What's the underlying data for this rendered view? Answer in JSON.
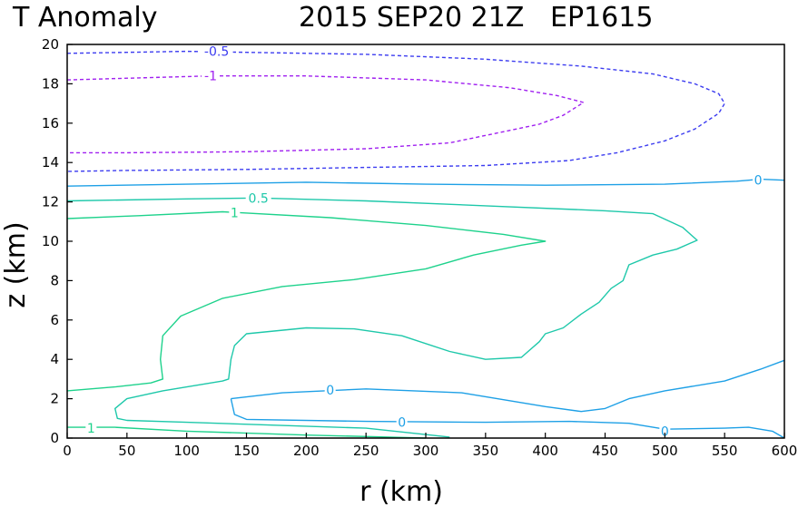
{
  "chart_data": {
    "type": "contour",
    "title_left": "T Anomaly",
    "title_right": "2015 SEP20 21Z   EP1615",
    "xlabel": "r (km)",
    "ylabel": "z (km)",
    "xlim": [
      0,
      600
    ],
    "ylim": [
      0,
      20
    ],
    "xticks": [
      "0",
      "50",
      "100",
      "150",
      "200",
      "250",
      "300",
      "350",
      "400",
      "450",
      "500",
      "550",
      "600"
    ],
    "yticks": [
      "0",
      "2",
      "4",
      "6",
      "8",
      "10",
      "12",
      "14",
      "16",
      "18",
      "20"
    ],
    "grid": false,
    "colors": {
      "neg_1": "#a020f0",
      "neg_0_5": "#3c3cf0",
      "zero": "#1ea0e6",
      "pos_0_5": "#1ec8aa",
      "pos_1": "#1ed28c"
    },
    "contours": [
      {
        "level": "-0.5",
        "style": "dashed",
        "color": "neg_0_5",
        "points": [
          [
            0,
            19.55
          ],
          [
            50,
            19.6
          ],
          [
            100,
            19.65
          ],
          [
            150,
            19.6
          ],
          [
            250,
            19.5
          ],
          [
            350,
            19.25
          ],
          [
            430,
            18.9
          ],
          [
            490,
            18.5
          ],
          [
            525,
            18.0
          ],
          [
            545,
            17.5
          ],
          [
            550,
            17.0
          ],
          [
            545,
            16.5
          ],
          [
            525,
            15.7
          ],
          [
            500,
            15.1
          ],
          [
            460,
            14.5
          ],
          [
            420,
            14.1
          ],
          [
            350,
            13.85
          ],
          [
            250,
            13.75
          ],
          [
            150,
            13.65
          ],
          [
            50,
            13.6
          ],
          [
            0,
            13.55
          ]
        ]
      },
      {
        "level": "-1",
        "style": "dashed",
        "color": "neg_1",
        "points": [
          [
            0,
            18.2
          ],
          [
            60,
            18.3
          ],
          [
            120,
            18.4
          ],
          [
            200,
            18.4
          ],
          [
            300,
            18.2
          ],
          [
            370,
            17.8
          ],
          [
            410,
            17.4
          ],
          [
            432,
            17.05
          ],
          [
            415,
            16.4
          ],
          [
            395,
            15.95
          ],
          [
            360,
            15.5
          ],
          [
            320,
            15.0
          ],
          [
            250,
            14.7
          ],
          [
            150,
            14.55
          ],
          [
            50,
            14.5
          ],
          [
            0,
            14.5
          ]
        ]
      },
      {
        "level": "0",
        "style": "solid",
        "color": "zero",
        "points": [
          [
            0,
            12.8
          ],
          [
            100,
            12.9
          ],
          [
            200,
            13.0
          ],
          [
            300,
            12.9
          ],
          [
            400,
            12.85
          ],
          [
            500,
            12.9
          ],
          [
            560,
            13.05
          ],
          [
            580,
            13.15
          ],
          [
            600,
            13.1
          ]
        ]
      },
      {
        "level": "0.5",
        "style": "solid",
        "color": "pos_0_5",
        "points": [
          [
            0,
            12.05
          ],
          [
            100,
            12.15
          ],
          [
            160,
            12.2
          ],
          [
            250,
            12.05
          ],
          [
            350,
            11.8
          ],
          [
            450,
            11.55
          ],
          [
            490,
            11.4
          ],
          [
            515,
            10.7
          ],
          [
            527,
            10.05
          ],
          [
            510,
            9.6
          ],
          [
            490,
            9.3
          ],
          [
            470,
            8.8
          ],
          [
            465,
            8.0
          ],
          [
            455,
            7.6
          ],
          [
            445,
            6.9
          ],
          [
            430,
            6.3
          ],
          [
            415,
            5.6
          ],
          [
            400,
            5.3
          ],
          [
            395,
            4.9
          ],
          [
            380,
            4.1
          ],
          [
            350,
            4.0
          ],
          [
            320,
            4.4
          ],
          [
            280,
            5.2
          ],
          [
            240,
            5.55
          ],
          [
            200,
            5.6
          ],
          [
            150,
            5.3
          ],
          [
            140,
            4.7
          ],
          [
            137,
            4.0
          ],
          [
            135,
            3.0
          ],
          [
            130,
            2.9
          ],
          [
            80,
            2.4
          ],
          [
            50,
            2.0
          ],
          [
            40,
            1.5
          ],
          [
            42,
            1.0
          ],
          [
            50,
            0.9
          ],
          [
            100,
            0.8
          ],
          [
            250,
            0.5
          ],
          [
            320,
            0.05
          ]
        ]
      },
      {
        "level": "1",
        "style": "solid",
        "color": "pos_1",
        "points": [
          [
            0,
            11.15
          ],
          [
            60,
            11.3
          ],
          [
            130,
            11.5
          ],
          [
            220,
            11.2
          ],
          [
            300,
            10.8
          ],
          [
            365,
            10.35
          ],
          [
            400,
            10.0
          ],
          [
            380,
            9.8
          ],
          [
            340,
            9.3
          ],
          [
            300,
            8.6
          ],
          [
            240,
            8.05
          ],
          [
            180,
            7.7
          ],
          [
            130,
            7.1
          ],
          [
            95,
            6.2
          ],
          [
            80,
            5.2
          ],
          [
            78,
            4.0
          ],
          [
            80,
            3.0
          ],
          [
            70,
            2.8
          ],
          [
            40,
            2.6
          ],
          [
            0,
            2.4
          ]
        ]
      },
      {
        "level": "1",
        "style": "solid",
        "color": "pos_1",
        "points": [
          [
            0,
            0.55
          ],
          [
            40,
            0.55
          ],
          [
            100,
            0.35
          ],
          [
            200,
            0.15
          ],
          [
            270,
            0.05
          ],
          [
            300,
            0.0
          ]
        ]
      },
      {
        "level": "0",
        "style": "solid",
        "color": "zero",
        "points": [
          [
            137,
            2.0
          ],
          [
            180,
            2.3
          ],
          [
            250,
            2.5
          ],
          [
            330,
            2.3
          ],
          [
            400,
            1.6
          ],
          [
            430,
            1.35
          ],
          [
            450,
            1.5
          ],
          [
            470,
            2.0
          ],
          [
            500,
            2.4
          ],
          [
            550,
            2.9
          ],
          [
            580,
            3.5
          ],
          [
            600,
            3.95
          ]
        ]
      },
      {
        "level": "0",
        "style": "solid",
        "color": "zero",
        "points": [
          [
            137,
            2.0
          ],
          [
            140,
            1.2
          ],
          [
            150,
            0.95
          ],
          [
            250,
            0.85
          ],
          [
            350,
            0.8
          ],
          [
            420,
            0.85
          ],
          [
            470,
            0.75
          ],
          [
            500,
            0.45
          ],
          [
            550,
            0.5
          ],
          [
            570,
            0.55
          ],
          [
            590,
            0.35
          ],
          [
            600,
            0.0
          ]
        ]
      }
    ],
    "contour_labels": [
      {
        "text": "-0.5",
        "x": 125,
        "y": 19.65,
        "color": "neg_0_5"
      },
      {
        "text": "-1",
        "x": 120,
        "y": 18.4,
        "color": "neg_1"
      },
      {
        "text": "0",
        "x": 578,
        "y": 13.1,
        "color": "zero"
      },
      {
        "text": "0.5",
        "x": 160,
        "y": 12.2,
        "color": "pos_0_5"
      },
      {
        "text": "1",
        "x": 140,
        "y": 11.45,
        "color": "pos_1"
      },
      {
        "text": "0",
        "x": 220,
        "y": 2.45,
        "color": "zero"
      },
      {
        "text": "0",
        "x": 280,
        "y": 0.8,
        "color": "zero"
      },
      {
        "text": "0",
        "x": 500,
        "y": 0.35,
        "color": "zero"
      },
      {
        "text": "1",
        "x": 20,
        "y": 0.5,
        "color": "pos_1"
      }
    ]
  }
}
